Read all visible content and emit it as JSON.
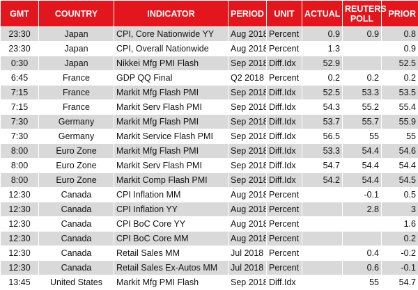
{
  "table": {
    "columns": [
      "GMT",
      "COUNTRY",
      "INDICATOR",
      "PERIOD",
      "UNIT",
      "ACTUAL",
      "REUTERS POLL",
      "PRIOR"
    ],
    "rows": [
      [
        "23:30",
        "Japan",
        "CPI, Core Nationwide YY",
        "Aug 2018",
        "Percent",
        "0.9",
        "0.9",
        "0.8"
      ],
      [
        "23:30",
        "Japan",
        "CPI, Overall Nationwide",
        "Aug 2018",
        "Percent",
        "1.3",
        null,
        "0.9"
      ],
      [
        "0:30",
        "Japan",
        "Nikkei Mfg PMI Flash",
        "Sep 2018",
        "Diff.Idx",
        "52.9",
        null,
        "52.5"
      ],
      [
        "6:45",
        "France",
        "GDP QQ Final",
        "Q2 2018",
        "Percent",
        "0.2",
        "0.2",
        "0.2"
      ],
      [
        "7:15",
        "France",
        "Markit Mfg Flash PMI",
        "Sep 2018",
        "Diff.Idx",
        "52.5",
        "53.3",
        "53.5"
      ],
      [
        "7:15",
        "France",
        "Markit Serv Flash PMI",
        "Sep 2018",
        "Diff.Idx",
        "54.3",
        "55.2",
        "55.4"
      ],
      [
        "7:30",
        "Germany",
        "Markit Mfg Flash PMI",
        "Sep 2018",
        "Diff.Idx",
        "53.7",
        "55.7",
        "55.9"
      ],
      [
        "7:30",
        "Germany",
        "Markit Service Flash PMI",
        "Sep 2018",
        "Diff.Idx",
        "56.5",
        "55",
        "55"
      ],
      [
        "8:00",
        "Euro Zone",
        "Markit Mfg Flash PMI",
        "Sep 2018",
        "Diff.Idx",
        "53.3",
        "54.4",
        "54.6"
      ],
      [
        "8:00",
        "Euro Zone",
        "Markit Serv Flash PMI",
        "Sep 2018",
        "Diff.Idx",
        "54.7",
        "54.4",
        "54.4"
      ],
      [
        "8:00",
        "Euro Zone",
        "Markit Comp Flash PMI",
        "Sep 2018",
        "Diff.Idx",
        "54.2",
        "54.4",
        "54.5"
      ],
      [
        "12:30",
        "Canada",
        "CPI Inflation MM",
        "Aug 2018",
        "Percent",
        null,
        "-0.1",
        "0.5"
      ],
      [
        "12:30",
        "Canada",
        "CPI Inflation YY",
        "Aug 2018",
        "Percent",
        null,
        "2.8",
        "3"
      ],
      [
        "12:30",
        "Canada",
        "CPI BoC Core YY",
        "Aug 2018",
        "Percent",
        null,
        null,
        "1.6"
      ],
      [
        "12:30",
        "Canada",
        "CPI BoC Core MM",
        "Aug 2018",
        "Percent",
        null,
        null,
        "0.2"
      ],
      [
        "12:30",
        "Canada",
        "Retail Sales MM",
        "Jul 2018",
        "Percent",
        null,
        "0.4",
        "-0.2"
      ],
      [
        "12:30",
        "Canada",
        "Retail Sales Ex-Autos MM",
        "Jul 2018",
        "Percent",
        null,
        "0.6",
        "-0.1"
      ],
      [
        "13:45",
        "United States",
        "Markit Mfg PMI Flash",
        "Sep 2018",
        "Diff.Idx",
        null,
        "55",
        "54.7"
      ]
    ]
  }
}
